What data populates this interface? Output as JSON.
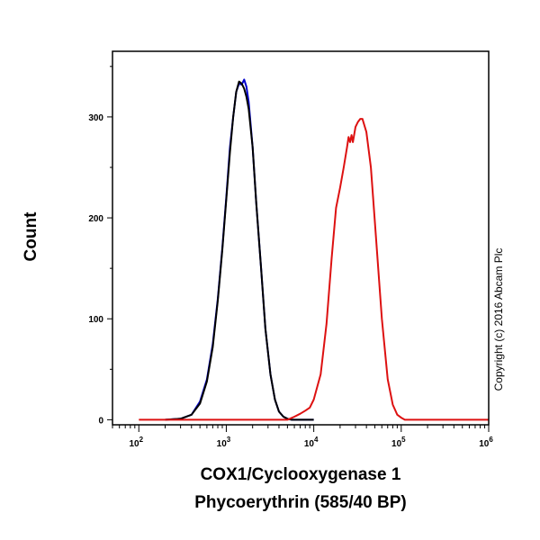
{
  "chart_data": {
    "type": "line",
    "title": "",
    "xlabel": [
      "COX1/Cyclooxygenase 1",
      "Phycoerythrin (585/40 BP)"
    ],
    "ylabel": "Count",
    "xscale": "log",
    "xlim": [
      50,
      1000000
    ],
    "ylim": [
      -5,
      365
    ],
    "x_ticks": [
      {
        "value": 100,
        "base": "10",
        "exp": "2"
      },
      {
        "value": 1000,
        "base": "10",
        "exp": "3"
      },
      {
        "value": 10000,
        "base": "10",
        "exp": "4"
      },
      {
        "value": 100000,
        "base": "10",
        "exp": "5"
      },
      {
        "value": 1000000,
        "base": "10",
        "exp": "6"
      }
    ],
    "y_ticks": [
      0,
      100,
      200,
      300
    ],
    "grid": false,
    "annotation": "Copyright (c) 2016 Abcam Plc",
    "series": [
      {
        "color": "#0000cc",
        "x": [
          200,
          300,
          400,
          500,
          600,
          700,
          800,
          900,
          1000,
          1100,
          1200,
          1300,
          1400,
          1500,
          1600,
          1700,
          1800,
          2000,
          2200,
          2500,
          2800,
          3200,
          3600,
          4000,
          4500,
          5000,
          5600,
          7000,
          10000
        ],
        "y": [
          0,
          1,
          5,
          18,
          40,
          75,
          120,
          170,
          220,
          270,
          300,
          325,
          333,
          332,
          337,
          330,
          315,
          270,
          215,
          150,
          90,
          45,
          20,
          8,
          3,
          1,
          0,
          0,
          0
        ]
      },
      {
        "color": "#000000",
        "x": [
          200,
          300,
          400,
          500,
          600,
          700,
          800,
          900,
          1000,
          1100,
          1200,
          1300,
          1400,
          1500,
          1600,
          1700,
          1800,
          2000,
          2200,
          2500,
          2800,
          3200,
          3600,
          4000,
          4500,
          5000,
          5600,
          7000,
          10000
        ],
        "y": [
          0,
          1,
          5,
          16,
          38,
          72,
          118,
          168,
          218,
          265,
          300,
          325,
          335,
          333,
          328,
          320,
          308,
          270,
          215,
          150,
          90,
          45,
          20,
          8,
          3,
          1,
          0,
          0,
          0
        ]
      },
      {
        "color": "#dd1111",
        "x": [
          100,
          1000,
          5000,
          6000,
          7000,
          8000,
          9000,
          10000,
          12000,
          14000,
          16000,
          18000,
          20000,
          22000,
          24000,
          25000,
          26000,
          27000,
          28000,
          30000,
          32000,
          34000,
          36000,
          40000,
          45000,
          50000,
          60000,
          70000,
          80000,
          90000,
          100000,
          110000,
          120000,
          200000,
          1000000
        ],
        "y": [
          0,
          0,
          0,
          3,
          6,
          9,
          12,
          20,
          45,
          95,
          160,
          210,
          230,
          250,
          270,
          280,
          275,
          282,
          275,
          290,
          295,
          298,
          298,
          285,
          250,
          195,
          100,
          40,
          15,
          5,
          2,
          0,
          0,
          0,
          0
        ]
      }
    ]
  }
}
